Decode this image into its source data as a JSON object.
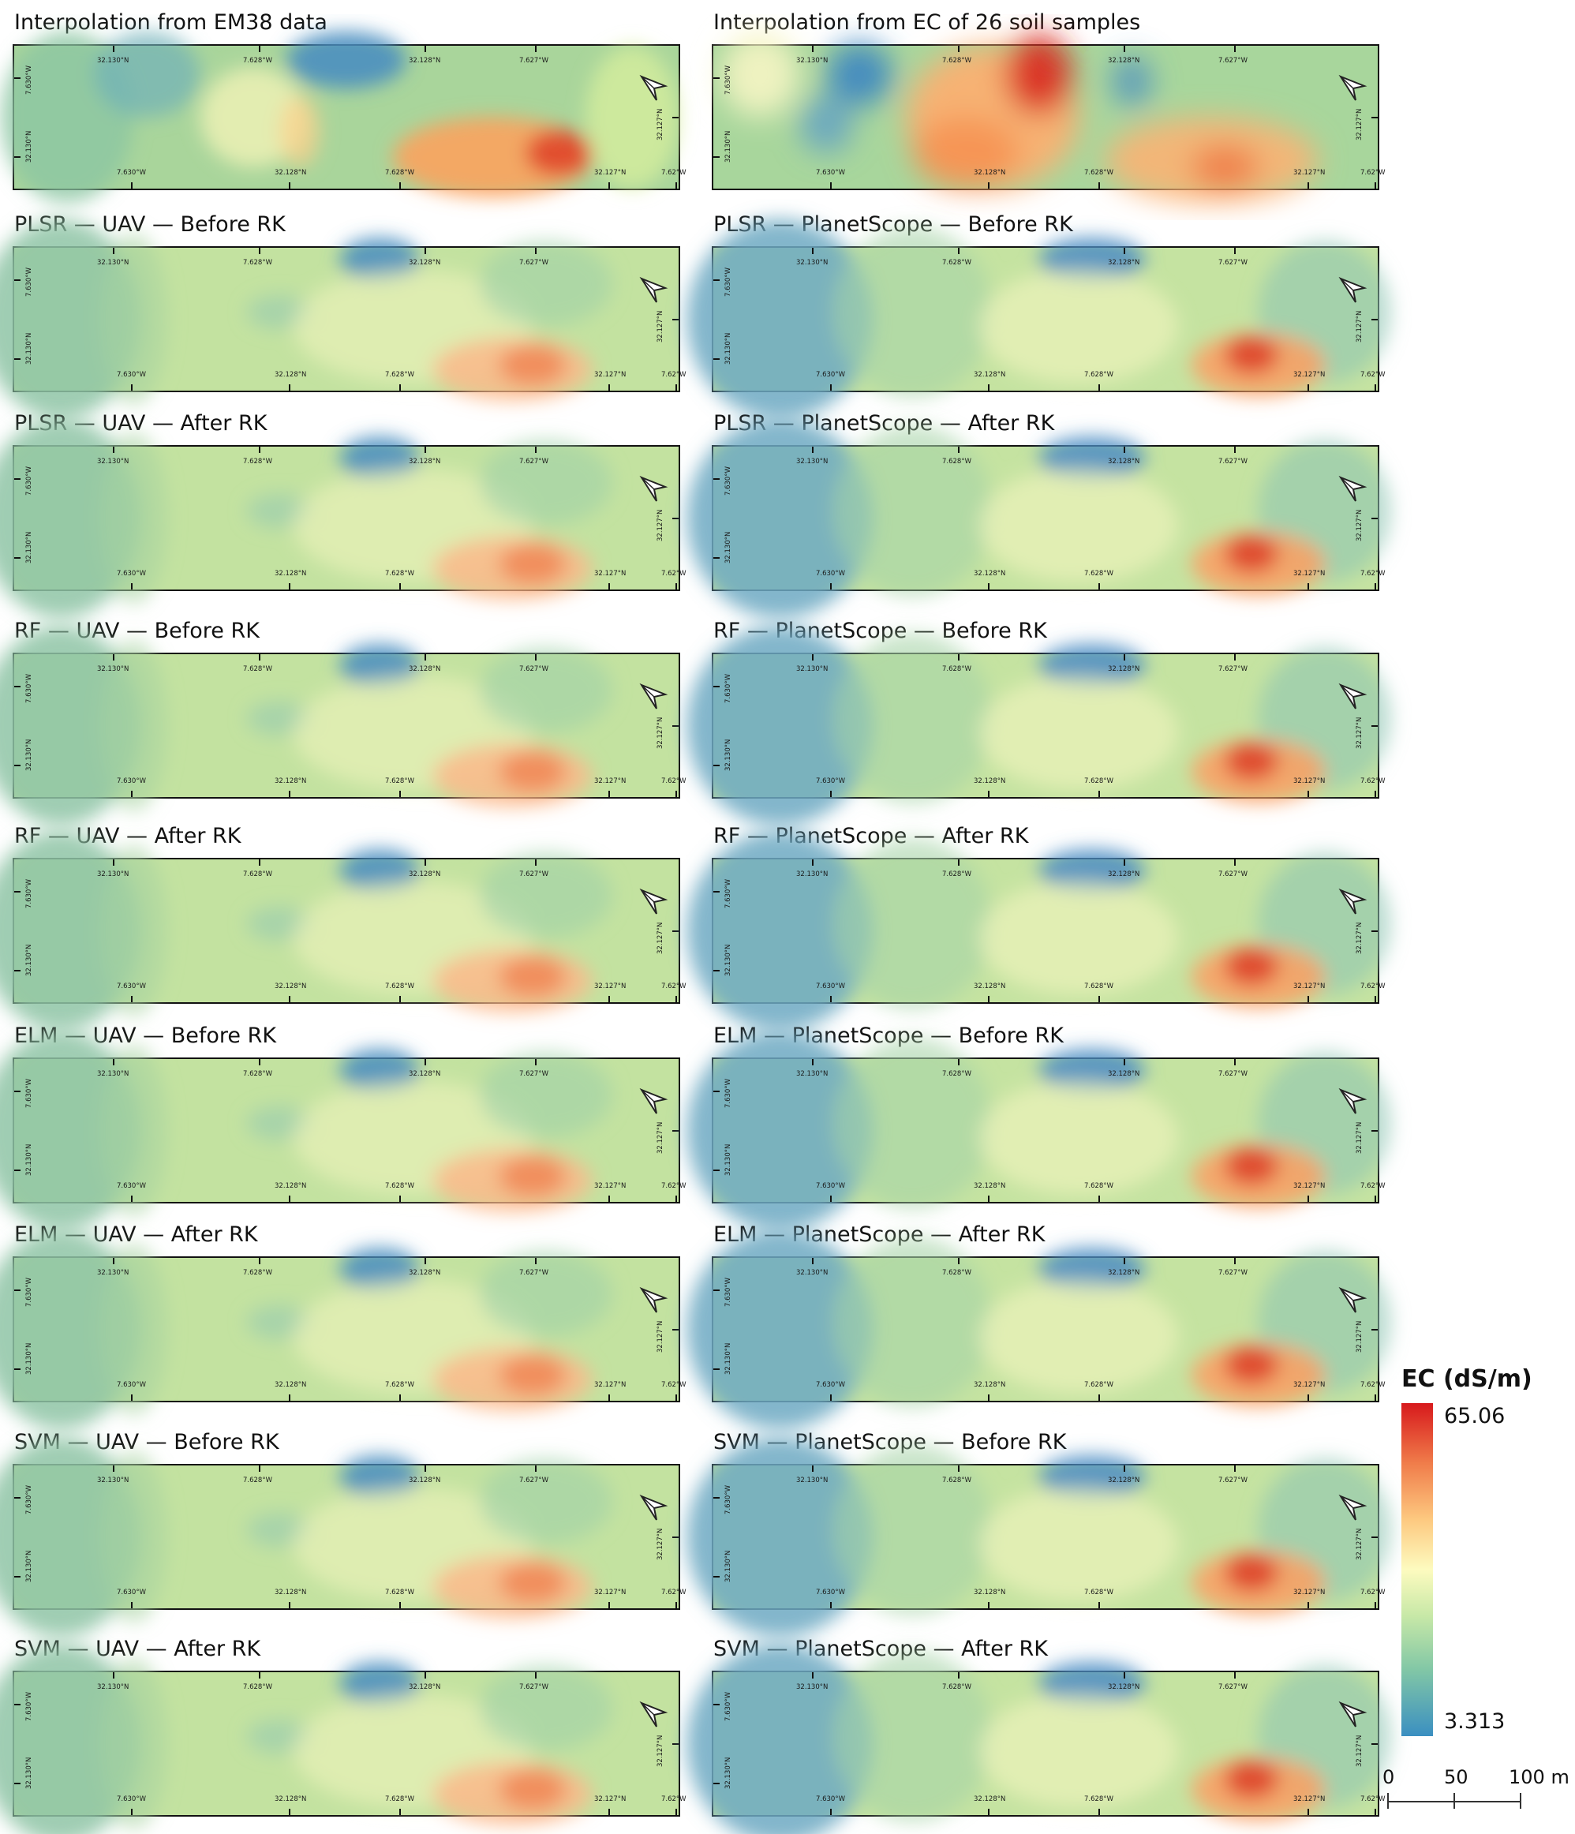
{
  "panels": [
    {
      "title": "Interpolation from EM38 data",
      "style": "em38"
    },
    {
      "title": "Interpolation from EC of 26 soil samples",
      "style": "soil"
    },
    {
      "title": "PLSR — UAV — Before RK",
      "style": "uav"
    },
    {
      "title": "PLSR — PlanetScope — Before RK",
      "style": "planet"
    },
    {
      "title": "PLSR — UAV — After RK",
      "style": "uav"
    },
    {
      "title": "PLSR — PlanetScope — After RK",
      "style": "planet"
    },
    {
      "title": "RF — UAV — Before RK",
      "style": "uav"
    },
    {
      "title": "RF — PlanetScope — Before RK",
      "style": "planet"
    },
    {
      "title": "RF — UAV — After RK",
      "style": "uav"
    },
    {
      "title": "RF — PlanetScope — After RK",
      "style": "planet"
    },
    {
      "title": "ELM — UAV — Before RK",
      "style": "uav"
    },
    {
      "title": "ELM — PlanetScope — Before RK",
      "style": "planet"
    },
    {
      "title": "ELM — UAV — After RK",
      "style": "uav"
    },
    {
      "title": "ELM — PlanetScope — After RK",
      "style": "planet"
    },
    {
      "title": "SVM — UAV — Before RK",
      "style": "uav"
    },
    {
      "title": "SVM — PlanetScope — Before RK",
      "style": "planet"
    },
    {
      "title": "SVM — UAV — After RK",
      "style": "uav"
    },
    {
      "title": "SVM — PlanetScope — After RK",
      "style": "planet"
    }
  ],
  "coord_labels": {
    "top": [
      "32.130°N",
      "7.628°W",
      "32.128°N",
      "7.627°W"
    ],
    "bottom": [
      "7.630°W",
      "32.128°N",
      "7.628°W",
      "32.127°N",
      "7.62°W"
    ],
    "left": [
      "7.630°W",
      "32.130°N"
    ],
    "right": "32.127°N"
  },
  "legend": {
    "title": "EC (dS/m)",
    "max": "65.06",
    "min": "3.313",
    "colors": [
      "#d7191c",
      "#fdae61",
      "#ffffbf",
      "#abdda4",
      "#2b83ba"
    ]
  },
  "scalebar": {
    "labels": [
      "0",
      "50",
      "100 m"
    ]
  },
  "icons": {
    "north": "north-arrow-icon"
  }
}
